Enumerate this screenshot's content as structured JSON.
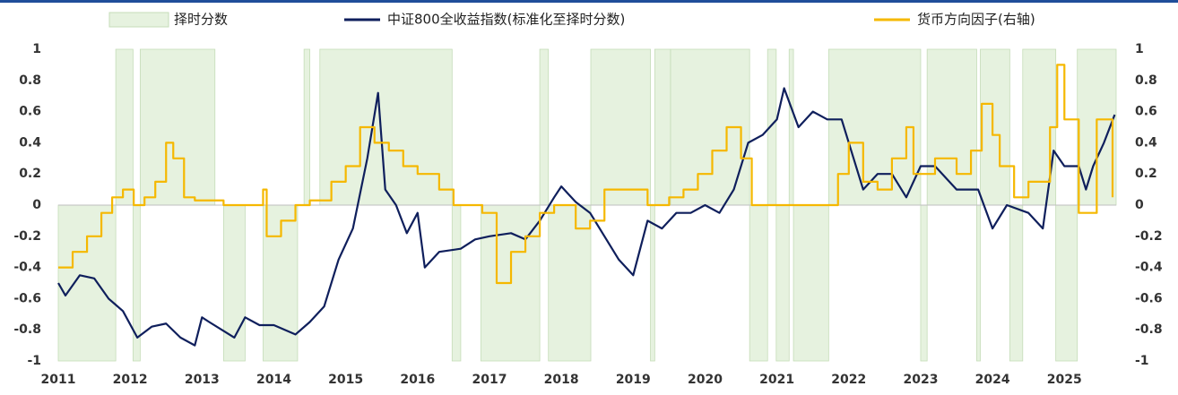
{
  "chart_data": {
    "type": "combo",
    "xlim": [
      2011,
      2025.72
    ],
    "xticks": [
      2011,
      2012,
      2013,
      2014,
      2015,
      2016,
      2017,
      2018,
      2019,
      2020,
      2021,
      2022,
      2023,
      2024,
      2025
    ],
    "ylim": [
      -1,
      1
    ],
    "yticks": [
      -1,
      -0.8,
      -0.6,
      -0.4,
      -0.2,
      0,
      0.2,
      0.4,
      0.6,
      0.8,
      1
    ],
    "y2lim": [
      -1,
      1
    ],
    "y2ticks": [
      -1,
      -0.8,
      -0.6,
      -0.4,
      -0.2,
      0,
      0.2,
      0.4,
      0.6,
      0.8,
      1
    ],
    "series": [
      {
        "name": "择时分数",
        "type": "step-area",
        "color": "#e6f2df",
        "x": [
          2011.0,
          2011.8,
          2012.04,
          2012.14,
          2013.18,
          2013.3,
          2013.6,
          2013.85,
          2014.33,
          2014.42,
          2014.5,
          2014.64,
          2016.48,
          2016.6,
          2016.88,
          2017.7,
          2017.82,
          2018.41,
          2019.24,
          2019.3,
          2019.52,
          2020.62,
          2020.87,
          2020.99,
          2021.17,
          2021.23,
          2021.72,
          2023.0,
          2023.09,
          2023.78,
          2023.83,
          2024.24,
          2024.42,
          2024.88,
          2025.18
        ],
        "values": [
          -1,
          1,
          -1,
          1,
          0,
          -1,
          0,
          -1,
          0,
          1,
          0,
          1,
          -1,
          0,
          -1,
          1,
          -1,
          1,
          -1,
          1,
          1,
          -1,
          1,
          -1,
          1,
          -1,
          1,
          -1,
          1,
          -1,
          1,
          -1,
          1,
          -1,
          1
        ]
      },
      {
        "name": "中证800全收益指数(标准化至择时分数)",
        "type": "line",
        "color": "#0f1f5c",
        "x": [
          2011.0,
          2011.1,
          2011.3,
          2011.5,
          2011.7,
          2011.9,
          2012.1,
          2012.3,
          2012.5,
          2012.7,
          2012.9,
          2013.0,
          2013.1,
          2013.45,
          2013.6,
          2013.8,
          2014.0,
          2014.3,
          2014.5,
          2014.7,
          2014.9,
          2015.1,
          2015.3,
          2015.45,
          2015.55,
          2015.7,
          2015.85,
          2016.0,
          2016.1,
          2016.3,
          2016.6,
          2016.8,
          2017.0,
          2017.3,
          2017.5,
          2017.7,
          2017.9,
          2018.0,
          2018.2,
          2018.4,
          2018.6,
          2018.8,
          2019.0,
          2019.2,
          2019.4,
          2019.6,
          2019.8,
          2020.0,
          2020.2,
          2020.4,
          2020.6,
          2020.8,
          2021.0,
          2021.1,
          2021.3,
          2021.5,
          2021.7,
          2021.9,
          2022.0,
          2022.2,
          2022.4,
          2022.6,
          2022.8,
          2023.0,
          2023.2,
          2023.5,
          2023.8,
          2024.0,
          2024.2,
          2024.5,
          2024.7,
          2024.85,
          2025.0,
          2025.2,
          2025.3,
          2025.4,
          2025.55,
          2025.7
        ],
        "values": [
          -0.5,
          -0.58,
          -0.45,
          -0.47,
          -0.6,
          -0.68,
          -0.85,
          -0.78,
          -0.76,
          -0.85,
          -0.9,
          -0.72,
          -0.75,
          -0.85,
          -0.72,
          -0.77,
          -0.77,
          -0.83,
          -0.75,
          -0.65,
          -0.35,
          -0.15,
          0.3,
          0.72,
          0.1,
          0.0,
          -0.18,
          -0.05,
          -0.4,
          -0.3,
          -0.28,
          -0.22,
          -0.2,
          -0.18,
          -0.22,
          -0.1,
          0.05,
          0.12,
          0.02,
          -0.05,
          -0.2,
          -0.35,
          -0.45,
          -0.1,
          -0.15,
          -0.05,
          -0.05,
          0.0,
          -0.05,
          0.1,
          0.4,
          0.45,
          0.55,
          0.75,
          0.5,
          0.6,
          0.55,
          0.55,
          0.4,
          0.1,
          0.2,
          0.2,
          0.05,
          0.25,
          0.25,
          0.1,
          0.1,
          -0.15,
          0.0,
          -0.05,
          -0.15,
          0.35,
          0.25,
          0.25,
          0.1,
          0.25,
          0.4,
          0.58
        ]
      },
      {
        "name": "货币方向因子(右轴)",
        "type": "step",
        "axis": "y2",
        "color": "#f5b800",
        "x": [
          2011.0,
          2011.2,
          2011.4,
          2011.6,
          2011.75,
          2011.9,
          2012.05,
          2012.2,
          2012.35,
          2012.5,
          2012.6,
          2012.75,
          2012.9,
          2013.3,
          2013.8,
          2013.85,
          2013.9,
          2014.1,
          2014.3,
          2014.5,
          2014.8,
          2015.0,
          2015.2,
          2015.4,
          2015.6,
          2015.8,
          2016.0,
          2016.3,
          2016.5,
          2016.9,
          2017.1,
          2017.3,
          2017.5,
          2017.7,
          2017.9,
          2018.2,
          2018.4,
          2018.6,
          2019.0,
          2019.2,
          2019.5,
          2019.7,
          2019.9,
          2020.1,
          2020.3,
          2020.5,
          2020.65,
          2021.0,
          2021.5,
          2021.85,
          2022.0,
          2022.2,
          2022.4,
          2022.6,
          2022.8,
          2022.9,
          2023.2,
          2023.5,
          2023.7,
          2023.85,
          2024.0,
          2024.1,
          2024.3,
          2024.5,
          2024.8,
          2024.9,
          2025.0,
          2025.2,
          2025.45,
          2025.67
        ],
        "values": [
          -0.4,
          -0.3,
          -0.2,
          -0.05,
          0.05,
          0.1,
          0.0,
          0.05,
          0.15,
          0.4,
          0.3,
          0.05,
          0.03,
          0.0,
          0.0,
          0.1,
          -0.2,
          -0.1,
          0.0,
          0.03,
          0.15,
          0.25,
          0.5,
          0.4,
          0.35,
          0.25,
          0.2,
          0.1,
          0.0,
          -0.05,
          -0.5,
          -0.3,
          -0.2,
          -0.05,
          0.0,
          -0.15,
          -0.1,
          0.1,
          0.1,
          0.0,
          0.05,
          0.1,
          0.2,
          0.35,
          0.5,
          0.3,
          0.0,
          0.0,
          0.0,
          0.2,
          0.4,
          0.15,
          0.1,
          0.3,
          0.5,
          0.2,
          0.3,
          0.2,
          0.35,
          0.65,
          0.45,
          0.25,
          0.05,
          0.15,
          0.5,
          0.9,
          0.55,
          -0.05,
          0.55,
          0.05
        ]
      }
    ]
  }
}
